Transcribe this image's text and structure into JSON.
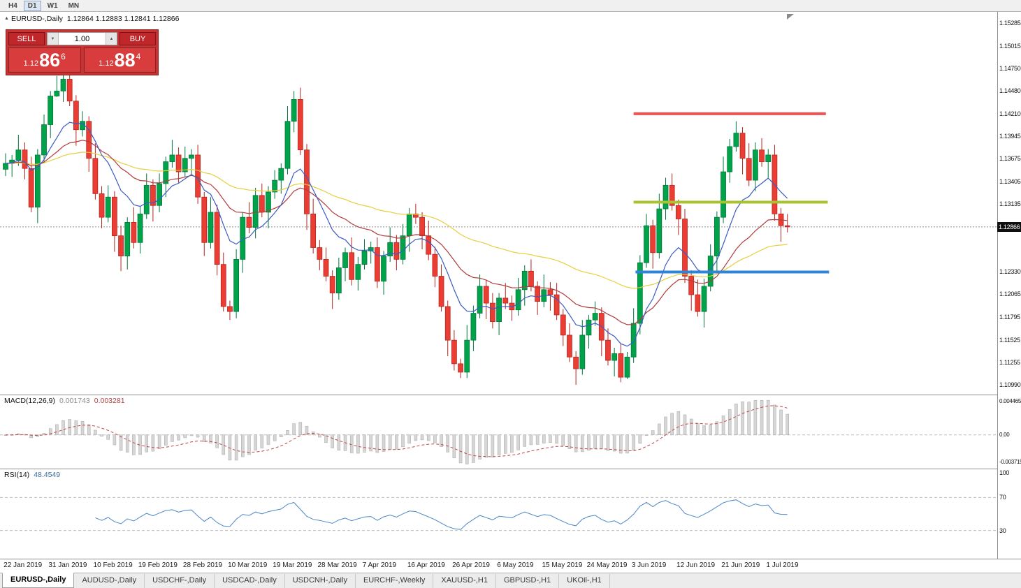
{
  "toolbar": {
    "items": [
      "H4",
      "D1",
      "W1",
      "MN"
    ],
    "active": "D1"
  },
  "icons": {
    "expand_marker": "▲",
    "spin_down": "▼",
    "spin_up": "▲"
  },
  "chart": {
    "symbol_period": "EURUSD-,Daily",
    "quote_line": "1.12864 1.12883 1.12841 1.12866"
  },
  "trade_panel": {
    "sell_label": "SELL",
    "buy_label": "BUY",
    "volume": "1.00",
    "sell_price": {
      "small": "1.12",
      "big": "86",
      "sup": "6"
    },
    "buy_price": {
      "small": "1.12",
      "big": "88",
      "sup": "4"
    }
  },
  "price_axis": {
    "ticks": [
      "1.15285",
      "1.15015",
      "1.14750",
      "1.14480",
      "1.14210",
      "1.13945",
      "1.13675",
      "1.13405",
      "1.13135",
      "1.12330",
      "1.12065",
      "1.11795",
      "1.11525",
      "1.11255",
      "1.10990"
    ],
    "current": "1.12866"
  },
  "macd": {
    "label": "MACD(12,26,9)",
    "value_main": "0.001743",
    "value_signal": "0.003281",
    "axis_labels": [
      "0.004465",
      "0.00",
      "-0.003715"
    ],
    "range": {
      "max": 0.004465,
      "min": -0.003715
    }
  },
  "rsi": {
    "label": "RSI(14)",
    "value": "48.4549",
    "axis_labels": [
      100,
      70,
      30
    ],
    "dashed_levels": [
      70,
      30
    ],
    "range": {
      "max": 100,
      "min": 0
    }
  },
  "bottom_tabs": {
    "items": [
      "EURUSD-,Daily",
      "AUDUSD-,Daily",
      "USDCHF-,Daily",
      "USDCAD-,Daily",
      "USDCNH-,Daily",
      "EURCHF-,Weekly",
      "XAUUSD-,H1",
      "GBPUSD-,H1",
      "UKOil-,H1"
    ],
    "active_index": 0
  },
  "chart_data": {
    "type": "candlestick",
    "symbol": "EURUSD-",
    "timeframe": "Daily",
    "current_price": 1.12866,
    "price_view": {
      "max": 1.1542,
      "min": 1.10874
    },
    "up_color": "#00a24a",
    "up_stroke": "#00763a",
    "down_color": "#ea3d34",
    "down_stroke": "#b3241d",
    "ma": [
      {
        "period": 60,
        "color": "#e6cf3e"
      },
      {
        "period": 25,
        "color": "#b23b3b"
      },
      {
        "period": 10,
        "color": "#3b5bc4"
      }
    ],
    "levels": [
      {
        "price": 1.1421,
        "color": "#f05050",
        "from": 98,
        "to": 128
      },
      {
        "price": 1.1316,
        "color": "#a9c32f",
        "from": 98,
        "to": 128.3
      },
      {
        "price": 1.1233,
        "color": "#2f84d8",
        "from": 98.3,
        "to": 128.5
      }
    ],
    "x_labels": [
      {
        "index": 1,
        "label": "22 Jan 2019"
      },
      {
        "index": 8,
        "label": "31 Jan 2019"
      },
      {
        "index": 15,
        "label": "10 Feb 2019"
      },
      {
        "index": 22,
        "label": "19 Feb 2019"
      },
      {
        "index": 29,
        "label": "28 Feb 2019"
      },
      {
        "index": 36,
        "label": "10 Mar 2019"
      },
      {
        "index": 43,
        "label": "19 Mar 2019"
      },
      {
        "index": 50,
        "label": "28 Mar 2019"
      },
      {
        "index": 57,
        "label": "7 Apr 2019"
      },
      {
        "index": 64,
        "label": "16 Apr 2019"
      },
      {
        "index": 71,
        "label": "26 Apr 2019"
      },
      {
        "index": 78,
        "label": "6 May 2019"
      },
      {
        "index": 85,
        "label": "15 May 2019"
      },
      {
        "index": 92,
        "label": "24 May 2019"
      },
      {
        "index": 99,
        "label": "3 Jun 2019"
      },
      {
        "index": 106,
        "label": "12 Jun 2019"
      },
      {
        "index": 113,
        "label": "21 Jun 2019"
      },
      {
        "index": 120,
        "label": "1 Jul 2019"
      }
    ],
    "candles": [
      [
        1.1355,
        1.1374,
        1.1347,
        1.1362
      ],
      [
        1.1362,
        1.1372,
        1.1346,
        1.1366
      ],
      [
        1.1366,
        1.1396,
        1.1359,
        1.1378
      ],
      [
        1.1378,
        1.1387,
        1.1343,
        1.1356
      ],
      [
        1.1356,
        1.137,
        1.1304,
        1.131
      ],
      [
        1.131,
        1.1379,
        1.1291,
        1.1372
      ],
      [
        1.1372,
        1.142,
        1.1364,
        1.1408
      ],
      [
        1.1408,
        1.1448,
        1.1392,
        1.1442
      ],
      [
        1.1442,
        1.1466,
        1.1441,
        1.1448
      ],
      [
        1.1448,
        1.1488,
        1.1435,
        1.1462
      ],
      [
        1.1462,
        1.1476,
        1.143,
        1.1436
      ],
      [
        1.1436,
        1.1443,
        1.1383,
        1.1402
      ],
      [
        1.1402,
        1.1424,
        1.1394,
        1.1412
      ],
      [
        1.1412,
        1.1418,
        1.1352,
        1.1368
      ],
      [
        1.1368,
        1.1386,
        1.1319,
        1.1326
      ],
      [
        1.1326,
        1.1335,
        1.1285,
        1.1298
      ],
      [
        1.1298,
        1.1336,
        1.1292,
        1.1322
      ],
      [
        1.1322,
        1.1329,
        1.1257,
        1.1276
      ],
      [
        1.1276,
        1.1288,
        1.1234,
        1.1252
      ],
      [
        1.1252,
        1.1298,
        1.1236,
        1.1292
      ],
      [
        1.1292,
        1.131,
        1.1261,
        1.1268
      ],
      [
        1.1268,
        1.1311,
        1.1255,
        1.1302
      ],
      [
        1.1302,
        1.135,
        1.1296,
        1.1336
      ],
      [
        1.1336,
        1.1343,
        1.1293,
        1.1312
      ],
      [
        1.1312,
        1.135,
        1.1304,
        1.1338
      ],
      [
        1.1338,
        1.137,
        1.1322,
        1.1364
      ],
      [
        1.1364,
        1.139,
        1.1357,
        1.1372
      ],
      [
        1.1372,
        1.1381,
        1.1339,
        1.1352
      ],
      [
        1.1352,
        1.1382,
        1.1346,
        1.1368
      ],
      [
        1.1368,
        1.1379,
        1.1349,
        1.1372
      ],
      [
        1.1372,
        1.1384,
        1.1314,
        1.1322
      ],
      [
        1.1322,
        1.1328,
        1.1252,
        1.1268
      ],
      [
        1.1268,
        1.1322,
        1.1261,
        1.1304
      ],
      [
        1.1304,
        1.1313,
        1.1229,
        1.1242
      ],
      [
        1.1242,
        1.1256,
        1.1186,
        1.1192
      ],
      [
        1.1192,
        1.1199,
        1.1176,
        1.1186
      ],
      [
        1.1186,
        1.126,
        1.1178,
        1.1248
      ],
      [
        1.1248,
        1.1304,
        1.1232,
        1.1298
      ],
      [
        1.1298,
        1.1316,
        1.1279,
        1.1286
      ],
      [
        1.1286,
        1.1333,
        1.1273,
        1.1324
      ],
      [
        1.1324,
        1.1338,
        1.1298,
        1.1304
      ],
      [
        1.1304,
        1.1335,
        1.1285,
        1.1328
      ],
      [
        1.1328,
        1.1354,
        1.132,
        1.1342
      ],
      [
        1.1342,
        1.1362,
        1.1326,
        1.1356
      ],
      [
        1.1356,
        1.143,
        1.1349,
        1.1412
      ],
      [
        1.1412,
        1.1448,
        1.1399,
        1.1438
      ],
      [
        1.1438,
        1.1452,
        1.1372,
        1.1378
      ],
      [
        1.1378,
        1.1385,
        1.1283,
        1.1302
      ],
      [
        1.1302,
        1.132,
        1.1255,
        1.1262
      ],
      [
        1.1262,
        1.1271,
        1.1235,
        1.1248
      ],
      [
        1.1248,
        1.1262,
        1.1222,
        1.1228
      ],
      [
        1.1228,
        1.1235,
        1.1189,
        1.1208
      ],
      [
        1.1208,
        1.125,
        1.12,
        1.1238
      ],
      [
        1.1238,
        1.1262,
        1.1222,
        1.1256
      ],
      [
        1.1256,
        1.1274,
        1.1217,
        1.1224
      ],
      [
        1.1224,
        1.1251,
        1.1211,
        1.1242
      ],
      [
        1.1242,
        1.1272,
        1.1236,
        1.1258
      ],
      [
        1.1258,
        1.1269,
        1.1243,
        1.1262
      ],
      [
        1.1262,
        1.1274,
        1.1214,
        1.1222
      ],
      [
        1.1222,
        1.1258,
        1.1206,
        1.1252
      ],
      [
        1.1252,
        1.1286,
        1.1245,
        1.1268
      ],
      [
        1.1268,
        1.1277,
        1.1235,
        1.1248
      ],
      [
        1.1248,
        1.129,
        1.1242,
        1.1276
      ],
      [
        1.1276,
        1.1309,
        1.1257,
        1.1302
      ],
      [
        1.1302,
        1.1314,
        1.129,
        1.1298
      ],
      [
        1.1298,
        1.1304,
        1.126,
        1.1276
      ],
      [
        1.1276,
        1.1294,
        1.1247,
        1.1254
      ],
      [
        1.1254,
        1.1263,
        1.1215,
        1.1228
      ],
      [
        1.1228,
        1.1242,
        1.1186,
        1.1192
      ],
      [
        1.1192,
        1.1199,
        1.1133,
        1.1152
      ],
      [
        1.1152,
        1.1164,
        1.1116,
        1.1124
      ],
      [
        1.1124,
        1.113,
        1.1107,
        1.1114
      ],
      [
        1.1114,
        1.117,
        1.1107,
        1.1152
      ],
      [
        1.1152,
        1.1193,
        1.1139,
        1.1184
      ],
      [
        1.1184,
        1.123,
        1.1178,
        1.1216
      ],
      [
        1.1216,
        1.1223,
        1.1177,
        1.1196
      ],
      [
        1.1196,
        1.1208,
        1.1166,
        1.1174
      ],
      [
        1.1174,
        1.1208,
        1.1158,
        1.1202
      ],
      [
        1.1202,
        1.122,
        1.1189,
        1.1196
      ],
      [
        1.1196,
        1.1205,
        1.1175,
        1.1188
      ],
      [
        1.1188,
        1.1226,
        1.1181,
        1.1212
      ],
      [
        1.1212,
        1.1241,
        1.1193,
        1.1234
      ],
      [
        1.1234,
        1.1248,
        1.121,
        1.1216
      ],
      [
        1.1216,
        1.1222,
        1.1182,
        1.1198
      ],
      [
        1.1198,
        1.123,
        1.1191,
        1.1212
      ],
      [
        1.1212,
        1.1221,
        1.1187,
        1.1206
      ],
      [
        1.1206,
        1.122,
        1.1176,
        1.1182
      ],
      [
        1.1182,
        1.1189,
        1.1145,
        1.1158
      ],
      [
        1.1158,
        1.1172,
        1.1126,
        1.1132
      ],
      [
        1.1132,
        1.1139,
        1.1099,
        1.1118
      ],
      [
        1.1118,
        1.1176,
        1.1111,
        1.1158
      ],
      [
        1.1158,
        1.1182,
        1.1142,
        1.1176
      ],
      [
        1.1176,
        1.1198,
        1.1169,
        1.1184
      ],
      [
        1.1184,
        1.1191,
        1.1133,
        1.1152
      ],
      [
        1.1152,
        1.1166,
        1.1122,
        1.1128
      ],
      [
        1.1128,
        1.1143,
        1.1109,
        1.1136
      ],
      [
        1.1136,
        1.1148,
        1.1102,
        1.1108
      ],
      [
        1.1108,
        1.1138,
        1.1106,
        1.1132
      ],
      [
        1.1132,
        1.119,
        1.1125,
        1.1172
      ],
      [
        1.1172,
        1.1253,
        1.1159,
        1.1244
      ],
      [
        1.1244,
        1.1302,
        1.1238,
        1.1288
      ],
      [
        1.1288,
        1.1295,
        1.1237,
        1.1256
      ],
      [
        1.1256,
        1.1326,
        1.1249,
        1.1308
      ],
      [
        1.1308,
        1.1345,
        1.1295,
        1.1336
      ],
      [
        1.1336,
        1.135,
        1.1306,
        1.1312
      ],
      [
        1.1312,
        1.1319,
        1.1277,
        1.1296
      ],
      [
        1.1296,
        1.1308,
        1.122,
        1.1228
      ],
      [
        1.1228,
        1.1235,
        1.1187,
        1.1206
      ],
      [
        1.1206,
        1.1224,
        1.118,
        1.1186
      ],
      [
        1.1186,
        1.1225,
        1.1167,
        1.1216
      ],
      [
        1.1216,
        1.1266,
        1.121,
        1.1252
      ],
      [
        1.1252,
        1.1305,
        1.1233,
        1.1298
      ],
      [
        1.1298,
        1.137,
        1.1291,
        1.1352
      ],
      [
        1.1352,
        1.1391,
        1.1339,
        1.1382
      ],
      [
        1.1382,
        1.1412,
        1.1376,
        1.1398
      ],
      [
        1.1398,
        1.1405,
        1.1349,
        1.1368
      ],
      [
        1.1368,
        1.1386,
        1.1335,
        1.1342
      ],
      [
        1.1342,
        1.1387,
        1.1329,
        1.1378
      ],
      [
        1.1378,
        1.1392,
        1.1358,
        1.1364
      ],
      [
        1.1364,
        1.1379,
        1.1345,
        1.1372
      ],
      [
        1.1372,
        1.1384,
        1.1294,
        1.1302
      ],
      [
        1.1302,
        1.1309,
        1.1269,
        1.1288
      ],
      [
        1.1288,
        1.1302,
        1.128,
        1.12866
      ]
    ]
  }
}
